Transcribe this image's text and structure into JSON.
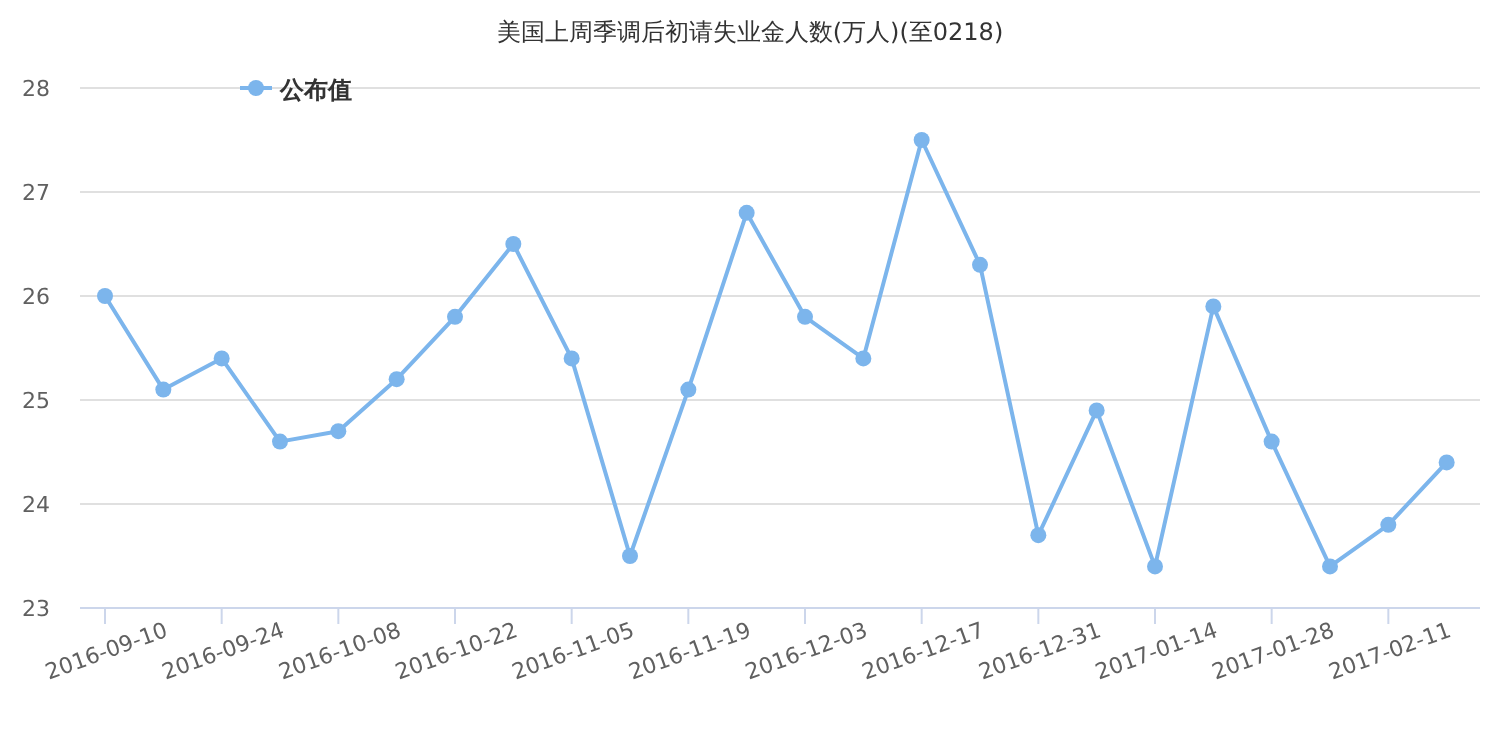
{
  "chart_data": {
    "type": "line",
    "title": "美国上周季调后初请失业金人数(万人)(至0218)",
    "x": [
      "2016-09-10",
      "2016-09-17",
      "2016-09-24",
      "2016-10-01",
      "2016-10-08",
      "2016-10-15",
      "2016-10-22",
      "2016-10-29",
      "2016-11-05",
      "2016-11-12",
      "2016-11-19",
      "2016-11-26",
      "2016-12-03",
      "2016-12-10",
      "2016-12-17",
      "2016-12-24",
      "2016-12-31",
      "2017-01-07",
      "2017-01-14",
      "2017-01-21",
      "2017-01-28",
      "2017-02-04",
      "2017-02-11",
      "2017-02-18"
    ],
    "series": [
      {
        "name": "公布值",
        "color": "#7cb5ec",
        "values": [
          26.0,
          25.1,
          25.4,
          24.6,
          24.7,
          25.2,
          25.8,
          26.5,
          25.4,
          23.5,
          25.1,
          26.8,
          25.8,
          25.4,
          27.5,
          26.3,
          23.7,
          24.9,
          23.4,
          25.9,
          24.6,
          23.4,
          23.8,
          24.4
        ]
      }
    ],
    "xlim": [
      "2016-09-07",
      "2017-02-22"
    ],
    "xticks": [
      "2016-09-10",
      "2016-09-24",
      "2016-10-08",
      "2016-10-22",
      "2016-11-05",
      "2016-11-19",
      "2016-12-03",
      "2016-12-17",
      "2016-12-31",
      "2017-01-14",
      "2017-01-28",
      "2017-02-11"
    ],
    "ylim": [
      23,
      28
    ],
    "yticks": [
      23,
      24,
      25,
      26,
      27,
      28
    ],
    "grid": "y",
    "legend": "top left",
    "marker": "circle",
    "line_style": "solid"
  }
}
